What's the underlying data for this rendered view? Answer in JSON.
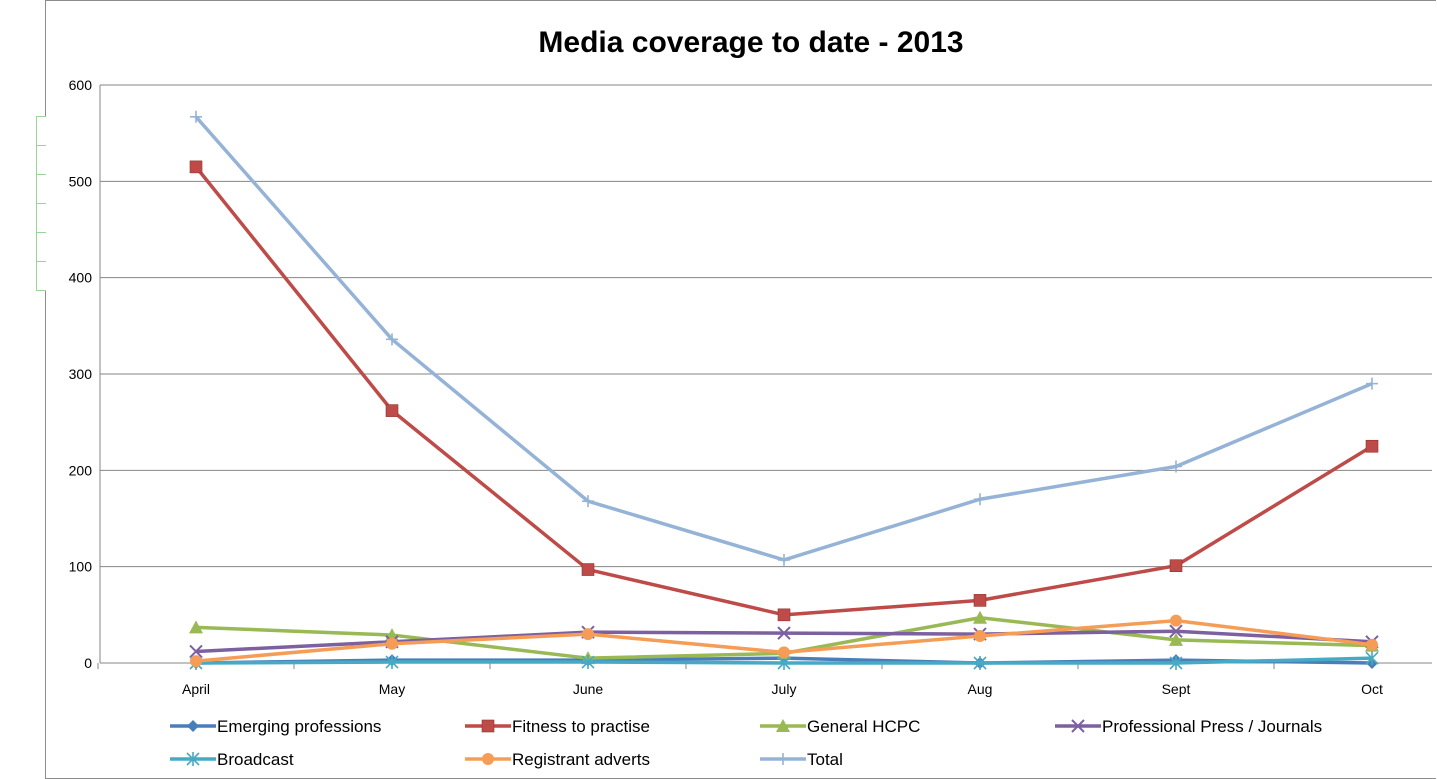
{
  "chart_data": {
    "type": "line",
    "title": "Media coverage to date - 2013",
    "xlabel": "",
    "ylabel": "",
    "categories": [
      "April",
      "May",
      "June",
      "July",
      "Aug",
      "Sept",
      "Oct"
    ],
    "ylim": [
      0,
      600
    ],
    "yticks": [
      0,
      100,
      200,
      300,
      400,
      500,
      600
    ],
    "grid": true,
    "legend_position": "bottom",
    "series": [
      {
        "name": "Emerging professions",
        "color": "#4a7ebb",
        "marker": "diamond",
        "values": [
          0,
          3,
          3,
          5,
          0,
          3,
          0
        ]
      },
      {
        "name": "Fitness to practise",
        "color": "#be4b48",
        "marker": "square",
        "values": [
          515,
          262,
          97,
          50,
          65,
          101,
          225
        ]
      },
      {
        "name": "General HCPC",
        "color": "#98b954",
        "marker": "triangle",
        "values": [
          37,
          29,
          5,
          10,
          47,
          24,
          18
        ]
      },
      {
        "name": "Professional Press / Journals",
        "color": "#7d60a0",
        "marker": "x",
        "values": [
          12,
          22,
          32,
          31,
          30,
          33,
          22
        ]
      },
      {
        "name": "Broadcast",
        "color": "#46aac5",
        "marker": "star",
        "values": [
          0,
          1,
          1,
          0,
          0,
          0,
          5
        ]
      },
      {
        "name": "Registrant adverts",
        "color": "#f59d56",
        "marker": "circle",
        "values": [
          2,
          20,
          30,
          11,
          28,
          44,
          19
        ]
      },
      {
        "name": "Total",
        "color": "#95b3d7",
        "marker": "plus",
        "values": [
          567,
          336,
          168,
          107,
          170,
          204,
          290
        ]
      }
    ]
  }
}
